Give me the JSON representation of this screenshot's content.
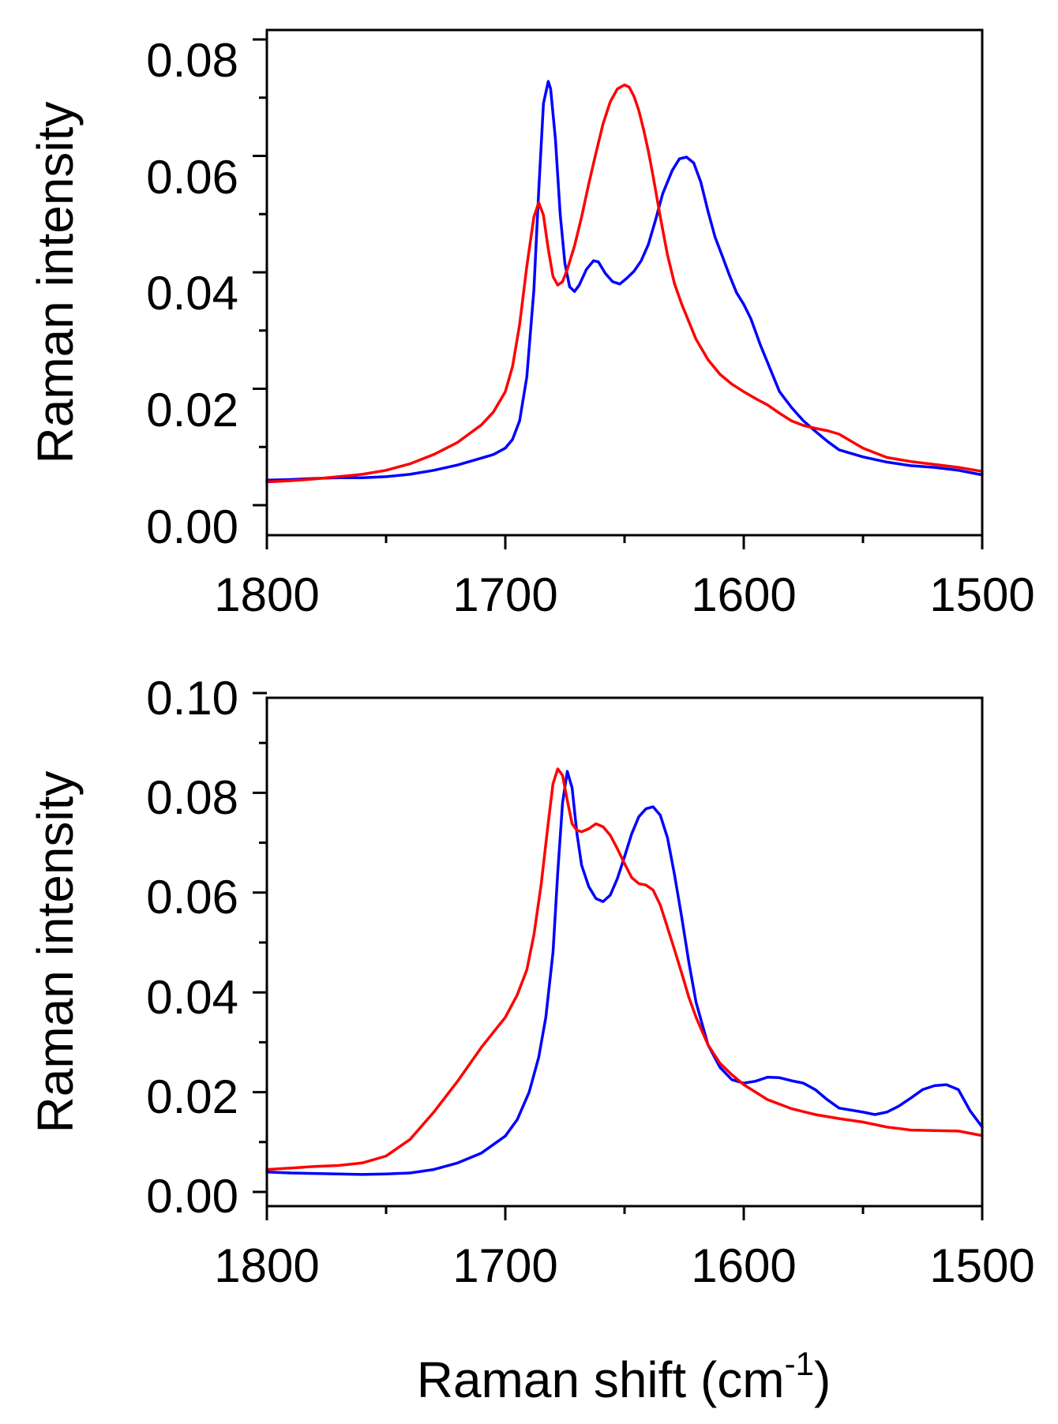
{
  "chart_data": [
    {
      "type": "line",
      "panel": "top",
      "xlabel": "",
      "ylabel": "Raman intensity",
      "xlim": [
        1800,
        1500
      ],
      "ylim": [
        -0.002,
        0.085
      ],
      "x_ticks": [
        1800,
        1700,
        1600,
        1500
      ],
      "x_tick_labels": [
        "1800",
        "1700",
        "1600",
        "1500"
      ],
      "y_ticks": [
        0.0,
        0.02,
        0.04,
        0.06,
        0.08
      ],
      "y_tick_labels": [
        "0.00",
        "0.02",
        "0.04",
        "0.06",
        "0.08"
      ],
      "series": [
        {
          "name": "blue",
          "color": "#0000ff",
          "x": [
            1800,
            1790,
            1780,
            1770,
            1760,
            1750,
            1740,
            1730,
            1720,
            1710,
            1705,
            1700,
            1697,
            1694,
            1691,
            1688,
            1686,
            1684,
            1682,
            1681,
            1679,
            1677,
            1675,
            1673,
            1671,
            1669,
            1666,
            1663,
            1661,
            1658,
            1655,
            1652,
            1649,
            1646,
            1643,
            1640,
            1637,
            1634,
            1630,
            1627,
            1624,
            1621,
            1618,
            1615,
            1612,
            1609,
            1606,
            1603,
            1600,
            1597,
            1593,
            1589,
            1585,
            1580,
            1575,
            1570,
            1565,
            1560,
            1550,
            1540,
            1530,
            1520,
            1510,
            1500
          ],
          "values": [
            0.0043,
            0.0044,
            0.0046,
            0.0047,
            0.0047,
            0.0049,
            0.0053,
            0.006,
            0.0069,
            0.0081,
            0.0087,
            0.0098,
            0.0113,
            0.0145,
            0.022,
            0.037,
            0.054,
            0.069,
            0.0728,
            0.0715,
            0.063,
            0.05,
            0.0415,
            0.0375,
            0.0367,
            0.0378,
            0.0405,
            0.042,
            0.0418,
            0.0398,
            0.0384,
            0.038,
            0.039,
            0.0402,
            0.042,
            0.0448,
            0.049,
            0.0535,
            0.0575,
            0.0595,
            0.0598,
            0.0588,
            0.0555,
            0.0505,
            0.046,
            0.0428,
            0.0395,
            0.0365,
            0.0345,
            0.032,
            0.0275,
            0.0235,
            0.0195,
            0.0168,
            0.0145,
            0.0127,
            0.011,
            0.0095,
            0.0083,
            0.0074,
            0.0068,
            0.0065,
            0.006,
            0.0052
          ]
        },
        {
          "name": "red",
          "color": "#ff0000",
          "x": [
            1800,
            1790,
            1780,
            1770,
            1760,
            1750,
            1740,
            1730,
            1720,
            1710,
            1705,
            1700,
            1697,
            1694,
            1691,
            1688,
            1686,
            1684,
            1682,
            1680,
            1678,
            1676,
            1674,
            1671,
            1668,
            1665,
            1662,
            1659,
            1656,
            1653,
            1650,
            1648,
            1646,
            1644,
            1642,
            1640,
            1638,
            1635,
            1632,
            1629,
            1626,
            1620,
            1615,
            1610,
            1605,
            1600,
            1595,
            1590,
            1585,
            1580,
            1575,
            1570,
            1565,
            1560,
            1550,
            1540,
            1530,
            1520,
            1510,
            1500
          ],
          "values": [
            0.004,
            0.0042,
            0.0045,
            0.0049,
            0.0053,
            0.006,
            0.0071,
            0.0087,
            0.0108,
            0.0138,
            0.016,
            0.0195,
            0.0238,
            0.031,
            0.041,
            0.0495,
            0.052,
            0.0498,
            0.044,
            0.0393,
            0.0378,
            0.0384,
            0.0405,
            0.0445,
            0.0495,
            0.0552,
            0.0605,
            0.0655,
            0.0693,
            0.0715,
            0.0722,
            0.0718,
            0.0702,
            0.0678,
            0.0645,
            0.0608,
            0.0565,
            0.0495,
            0.043,
            0.038,
            0.0345,
            0.0285,
            0.025,
            0.0225,
            0.0208,
            0.0195,
            0.0183,
            0.0172,
            0.0158,
            0.0145,
            0.0137,
            0.0132,
            0.0128,
            0.0122,
            0.0098,
            0.0082,
            0.0075,
            0.007,
            0.0065,
            0.0058
          ]
        }
      ]
    },
    {
      "type": "line",
      "panel": "bottom",
      "xlabel": "Raman shift (cm-1)",
      "xlabel_main": "Raman shift (cm",
      "xlabel_sup": "-1",
      "xlabel_end": ")",
      "ylabel": "Raman intensity",
      "xlim": [
        1800,
        1500
      ],
      "ylim": [
        -0.002,
        0.1
      ],
      "x_ticks": [
        1800,
        1700,
        1600,
        1500
      ],
      "x_tick_labels": [
        "1800",
        "1700",
        "1600",
        "1500"
      ],
      "y_ticks": [
        0.0,
        0.02,
        0.04,
        0.06,
        0.08,
        0.1
      ],
      "y_tick_labels": [
        "0.00",
        "0.02",
        "0.04",
        "0.06",
        "0.08",
        "0.10"
      ],
      "series": [
        {
          "name": "blue",
          "color": "#0000ff",
          "x": [
            1800,
            1790,
            1780,
            1770,
            1760,
            1750,
            1740,
            1730,
            1720,
            1710,
            1700,
            1695,
            1690,
            1686,
            1683,
            1680,
            1678,
            1676,
            1674,
            1672,
            1670,
            1668,
            1665,
            1662,
            1659,
            1656,
            1653,
            1650,
            1647,
            1644,
            1641,
            1638,
            1635,
            1632,
            1629,
            1626,
            1623,
            1620,
            1615,
            1610,
            1605,
            1600,
            1595,
            1590,
            1585,
            1580,
            1575,
            1570,
            1565,
            1560,
            1550,
            1545,
            1540,
            1535,
            1530,
            1525,
            1520,
            1515,
            1510,
            1505,
            1500
          ],
          "values": [
            0.004,
            0.0038,
            0.0037,
            0.0036,
            0.0035,
            0.0036,
            0.0038,
            0.0045,
            0.0058,
            0.0078,
            0.0112,
            0.0145,
            0.02,
            0.027,
            0.035,
            0.048,
            0.064,
            0.078,
            0.0843,
            0.081,
            0.072,
            0.0655,
            0.0612,
            0.0588,
            0.0582,
            0.0595,
            0.0628,
            0.0672,
            0.0718,
            0.0752,
            0.0768,
            0.0772,
            0.0755,
            0.071,
            0.0635,
            0.055,
            0.046,
            0.038,
            0.0295,
            0.025,
            0.0225,
            0.0218,
            0.0222,
            0.023,
            0.0229,
            0.0223,
            0.0218,
            0.0205,
            0.0185,
            0.0168,
            0.016,
            0.0155,
            0.016,
            0.0172,
            0.0188,
            0.0205,
            0.0213,
            0.0215,
            0.0205,
            0.0162,
            0.013
          ]
        },
        {
          "name": "red",
          "color": "#ff0000",
          "x": [
            1800,
            1790,
            1780,
            1770,
            1760,
            1750,
            1740,
            1730,
            1720,
            1710,
            1700,
            1695,
            1691,
            1688,
            1685,
            1682,
            1680,
            1678,
            1676,
            1674,
            1672,
            1670,
            1668,
            1665,
            1662,
            1659,
            1656,
            1653,
            1650,
            1647,
            1644,
            1641,
            1638,
            1635,
            1632,
            1629,
            1626,
            1623,
            1620,
            1615,
            1610,
            1605,
            1600,
            1590,
            1580,
            1570,
            1560,
            1550,
            1540,
            1530,
            1520,
            1510,
            1500
          ],
          "values": [
            0.0045,
            0.0048,
            0.0051,
            0.0053,
            0.0058,
            0.0072,
            0.0105,
            0.016,
            0.0222,
            0.029,
            0.035,
            0.0395,
            0.0445,
            0.0515,
            0.0615,
            0.074,
            0.0818,
            0.0848,
            0.0835,
            0.0785,
            0.0738,
            0.0725,
            0.0722,
            0.0728,
            0.0738,
            0.0732,
            0.0715,
            0.0688,
            0.0658,
            0.063,
            0.0618,
            0.0615,
            0.0605,
            0.0575,
            0.053,
            0.0485,
            0.0438,
            0.039,
            0.035,
            0.0295,
            0.0258,
            0.0235,
            0.0215,
            0.0185,
            0.0167,
            0.0155,
            0.0147,
            0.014,
            0.013,
            0.0124,
            0.0123,
            0.0122,
            0.0113
          ]
        }
      ]
    }
  ]
}
